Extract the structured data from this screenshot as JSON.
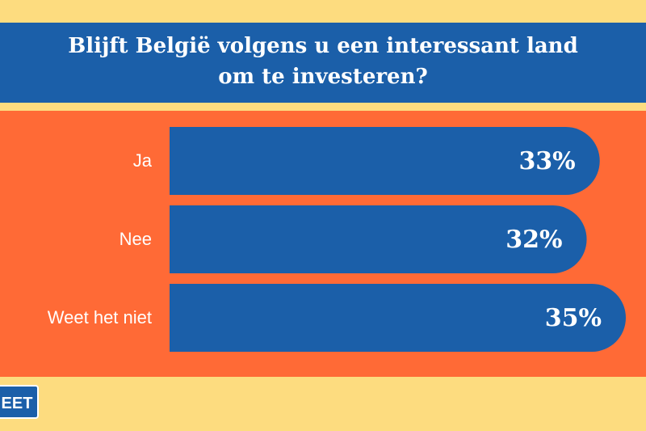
{
  "chart_data": {
    "type": "bar",
    "orientation": "horizontal",
    "title": "Blijft België volgens u een interessant land om te investeren?",
    "categories": [
      "Ja",
      "Nee",
      "Weet het niet"
    ],
    "values": [
      33,
      32,
      35
    ],
    "value_labels": [
      "33%",
      "32%",
      "35%"
    ],
    "color": "#1b5fa9"
  },
  "logo": "EET"
}
